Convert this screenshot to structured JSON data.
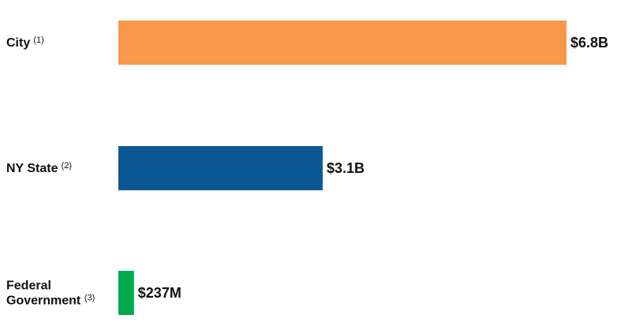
{
  "chart_data": {
    "type": "bar",
    "orientation": "horizontal",
    "title": "",
    "xlabel": "",
    "ylabel": "",
    "grid": false,
    "categories": [
      {
        "lines": [
          "City"
        ],
        "note": "(1)"
      },
      {
        "lines": [
          "NY State"
        ],
        "note": "(2)"
      },
      {
        "lines": [
          "Federal",
          "Government"
        ],
        "note": "(3)"
      }
    ],
    "values": [
      6800,
      3100,
      237
    ],
    "unit": "$M",
    "value_labels": [
      "$6.8B",
      "$3.1B",
      "$237M"
    ],
    "colors": [
      "#F7984A",
      "#0B5794",
      "#00AA4F"
    ],
    "xlim": [
      0,
      6800
    ]
  }
}
